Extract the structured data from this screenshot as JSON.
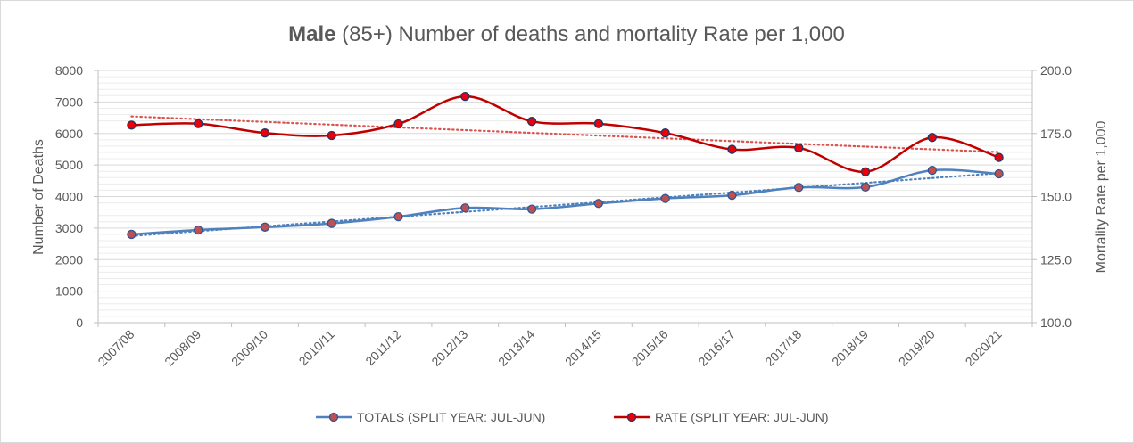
{
  "chart_data": {
    "type": "line",
    "title": {
      "bold": "Male",
      "rest": " (85+) Number of deaths and mortality Rate per 1,000"
    },
    "categories": [
      "2007/08",
      "2008/09",
      "2009/10",
      "2010/11",
      "2011/12",
      "2012/13",
      "2013/14",
      "2014/15",
      "2015/16",
      "2016/17",
      "2017/18",
      "2018/19",
      "2019/20",
      "2020/21"
    ],
    "y_left": {
      "label": "Number of Deaths",
      "range": [
        0,
        8000
      ],
      "ticks": [
        "0",
        "1000",
        "2000",
        "3000",
        "4000",
        "5000",
        "6000",
        "7000",
        "8000"
      ]
    },
    "y_right": {
      "label": "Mortality Rate per 1,000",
      "range": [
        100,
        200
      ],
      "ticks": [
        "100.0",
        "125.0",
        "150.0",
        "175.0",
        "200.0"
      ]
    },
    "series": [
      {
        "name": "TOTALS (SPLIT YEAR: JUL-JUN)",
        "axis": "left",
        "color": "#4f81bd",
        "trendline": true,
        "values": [
          2800,
          2940,
          3030,
          3150,
          3360,
          3640,
          3600,
          3780,
          3940,
          4040,
          4290,
          4300,
          4830,
          4720
        ]
      },
      {
        "name": "RATE (SPLIT YEAR: JUL-JUN)",
        "axis": "right",
        "color": "#c00000",
        "trendline": true,
        "values": [
          178.3,
          178.9,
          175.2,
          174.2,
          178.8,
          189.7,
          179.8,
          178.9,
          175.2,
          168.7,
          169.3,
          159.8,
          173.4,
          165.5
        ]
      }
    ],
    "grid": true,
    "legend_position": "bottom"
  }
}
